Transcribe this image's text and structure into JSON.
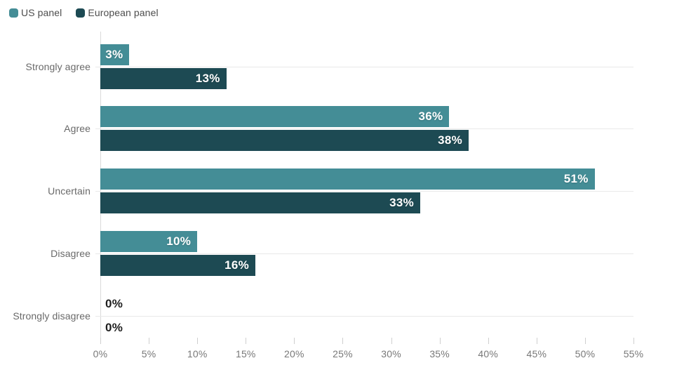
{
  "legend": [
    {
      "label": "US panel",
      "color": "#448D96"
    },
    {
      "label": "European panel",
      "color": "#1D4A53"
    }
  ],
  "chart_data": {
    "type": "bar",
    "orientation": "horizontal",
    "title": "",
    "xlabel": "",
    "ylabel": "",
    "categories": [
      "Strongly agree",
      "Agree",
      "Uncertain",
      "Disagree",
      "Strongly disagree"
    ],
    "series": [
      {
        "name": "US panel",
        "color": "#448D96",
        "values": [
          3,
          36,
          51,
          10,
          0
        ]
      },
      {
        "name": "European panel",
        "color": "#1D4A53",
        "values": [
          13,
          38,
          33,
          16,
          0
        ]
      }
    ],
    "value_labels": [
      [
        "3%",
        "36%",
        "51%",
        "10%",
        "0%"
      ],
      [
        "13%",
        "38%",
        "33%",
        "16%",
        "0%"
      ]
    ],
    "value_suffix": "%",
    "xlim": [
      0,
      55
    ],
    "x_tick_values": [
      0,
      5,
      10,
      15,
      20,
      25,
      30,
      35,
      40,
      45,
      50,
      55
    ],
    "x_tick_labels": [
      "0%",
      "5%",
      "10%",
      "15%",
      "20%",
      "25%",
      "30%",
      "35%",
      "40%",
      "45%",
      "50%",
      "55%"
    ],
    "grid": "horizontal-category-lines",
    "legend_position": "top-left"
  },
  "colors": {
    "background": "#ffffff",
    "gridline": "#e9e9e9",
    "axis_line": "#dadada",
    "tick": "#cfcfcf",
    "category_text": "#696969",
    "tick_text": "#787878",
    "legend_text": "#4d4d4d",
    "bar_value_text": "#ffffff",
    "zero_value_text": "#1f1f1f"
  }
}
